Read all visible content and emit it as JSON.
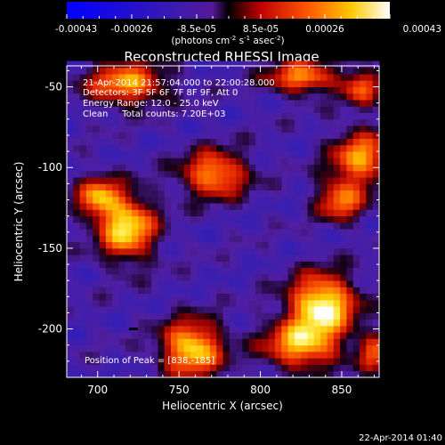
{
  "chart_data": {
    "type": "heatmap",
    "title": "Reconstructed RHESSI Image",
    "xlabel": "Heliocentric X (arcsec)",
    "ylabel": "Heliocentric Y (arcsec)",
    "xlim": [
      681,
      873
    ],
    "ylim": [
      -230,
      -37
    ],
    "x_ticks": [
      700,
      750,
      800,
      850
    ],
    "y_ticks": [
      -50,
      -100,
      -150,
      -200
    ],
    "colorbar": {
      "range": [
        -0.00043,
        0.00043
      ],
      "tick_labels": [
        "-0.00043",
        "-0.00026",
        "-8.5e-05",
        "8.5e-05",
        "0.00026",
        "0.00043"
      ],
      "units_main": "(photons cm",
      "units_sup1": "-2",
      "units_mid": " s",
      "units_sup2": "-1",
      "units_mid2": " asec",
      "units_sup3": "-2",
      "units_end": ")"
    },
    "annotations": [
      "21-Apr-2014 21:57:04.000 to 22:00:28.000",
      "Detectors: 3F 5F 6F 7F 8F 9F, Att 0",
      "Energy Range: 12.0 - 25.0 keV",
      "Clean     Total counts: 7.20E+03"
    ],
    "peak_label": "Position of Peak = [838,-185]",
    "peak": [
      838,
      -185
    ],
    "sources": [
      {
        "x": 838,
        "y": -185,
        "peak": 1.0,
        "sx": 14,
        "sy": 13
      },
      {
        "x": 825,
        "y": -210,
        "peak": 0.7,
        "sx": 16,
        "sy": 10
      },
      {
        "x": 758,
        "y": -212,
        "peak": 0.85,
        "sx": 13,
        "sy": 12
      },
      {
        "x": 718,
        "y": -137,
        "peak": 0.85,
        "sx": 12,
        "sy": 14
      },
      {
        "x": 700,
        "y": -118,
        "peak": 0.55,
        "sx": 9,
        "sy": 9
      },
      {
        "x": 772,
        "y": -104,
        "peak": 0.65,
        "sx": 14,
        "sy": 10
      },
      {
        "x": 862,
        "y": -94,
        "peak": 0.6,
        "sx": 13,
        "sy": 12
      },
      {
        "x": 849,
        "y": -120,
        "peak": 0.5,
        "sx": 10,
        "sy": 9
      },
      {
        "x": 718,
        "y": -48,
        "peak": 0.65,
        "sx": 17,
        "sy": 9
      },
      {
        "x": 826,
        "y": -44,
        "peak": 0.6,
        "sx": 15,
        "sy": 7
      },
      {
        "x": 862,
        "y": -50,
        "peak": 0.4,
        "sx": 8,
        "sy": 8
      },
      {
        "x": 870,
        "y": -215,
        "peak": 0.35,
        "sx": 7,
        "sy": 9
      }
    ]
  },
  "footer": {
    "timestamp": "22-Apr-2014 01:40"
  }
}
